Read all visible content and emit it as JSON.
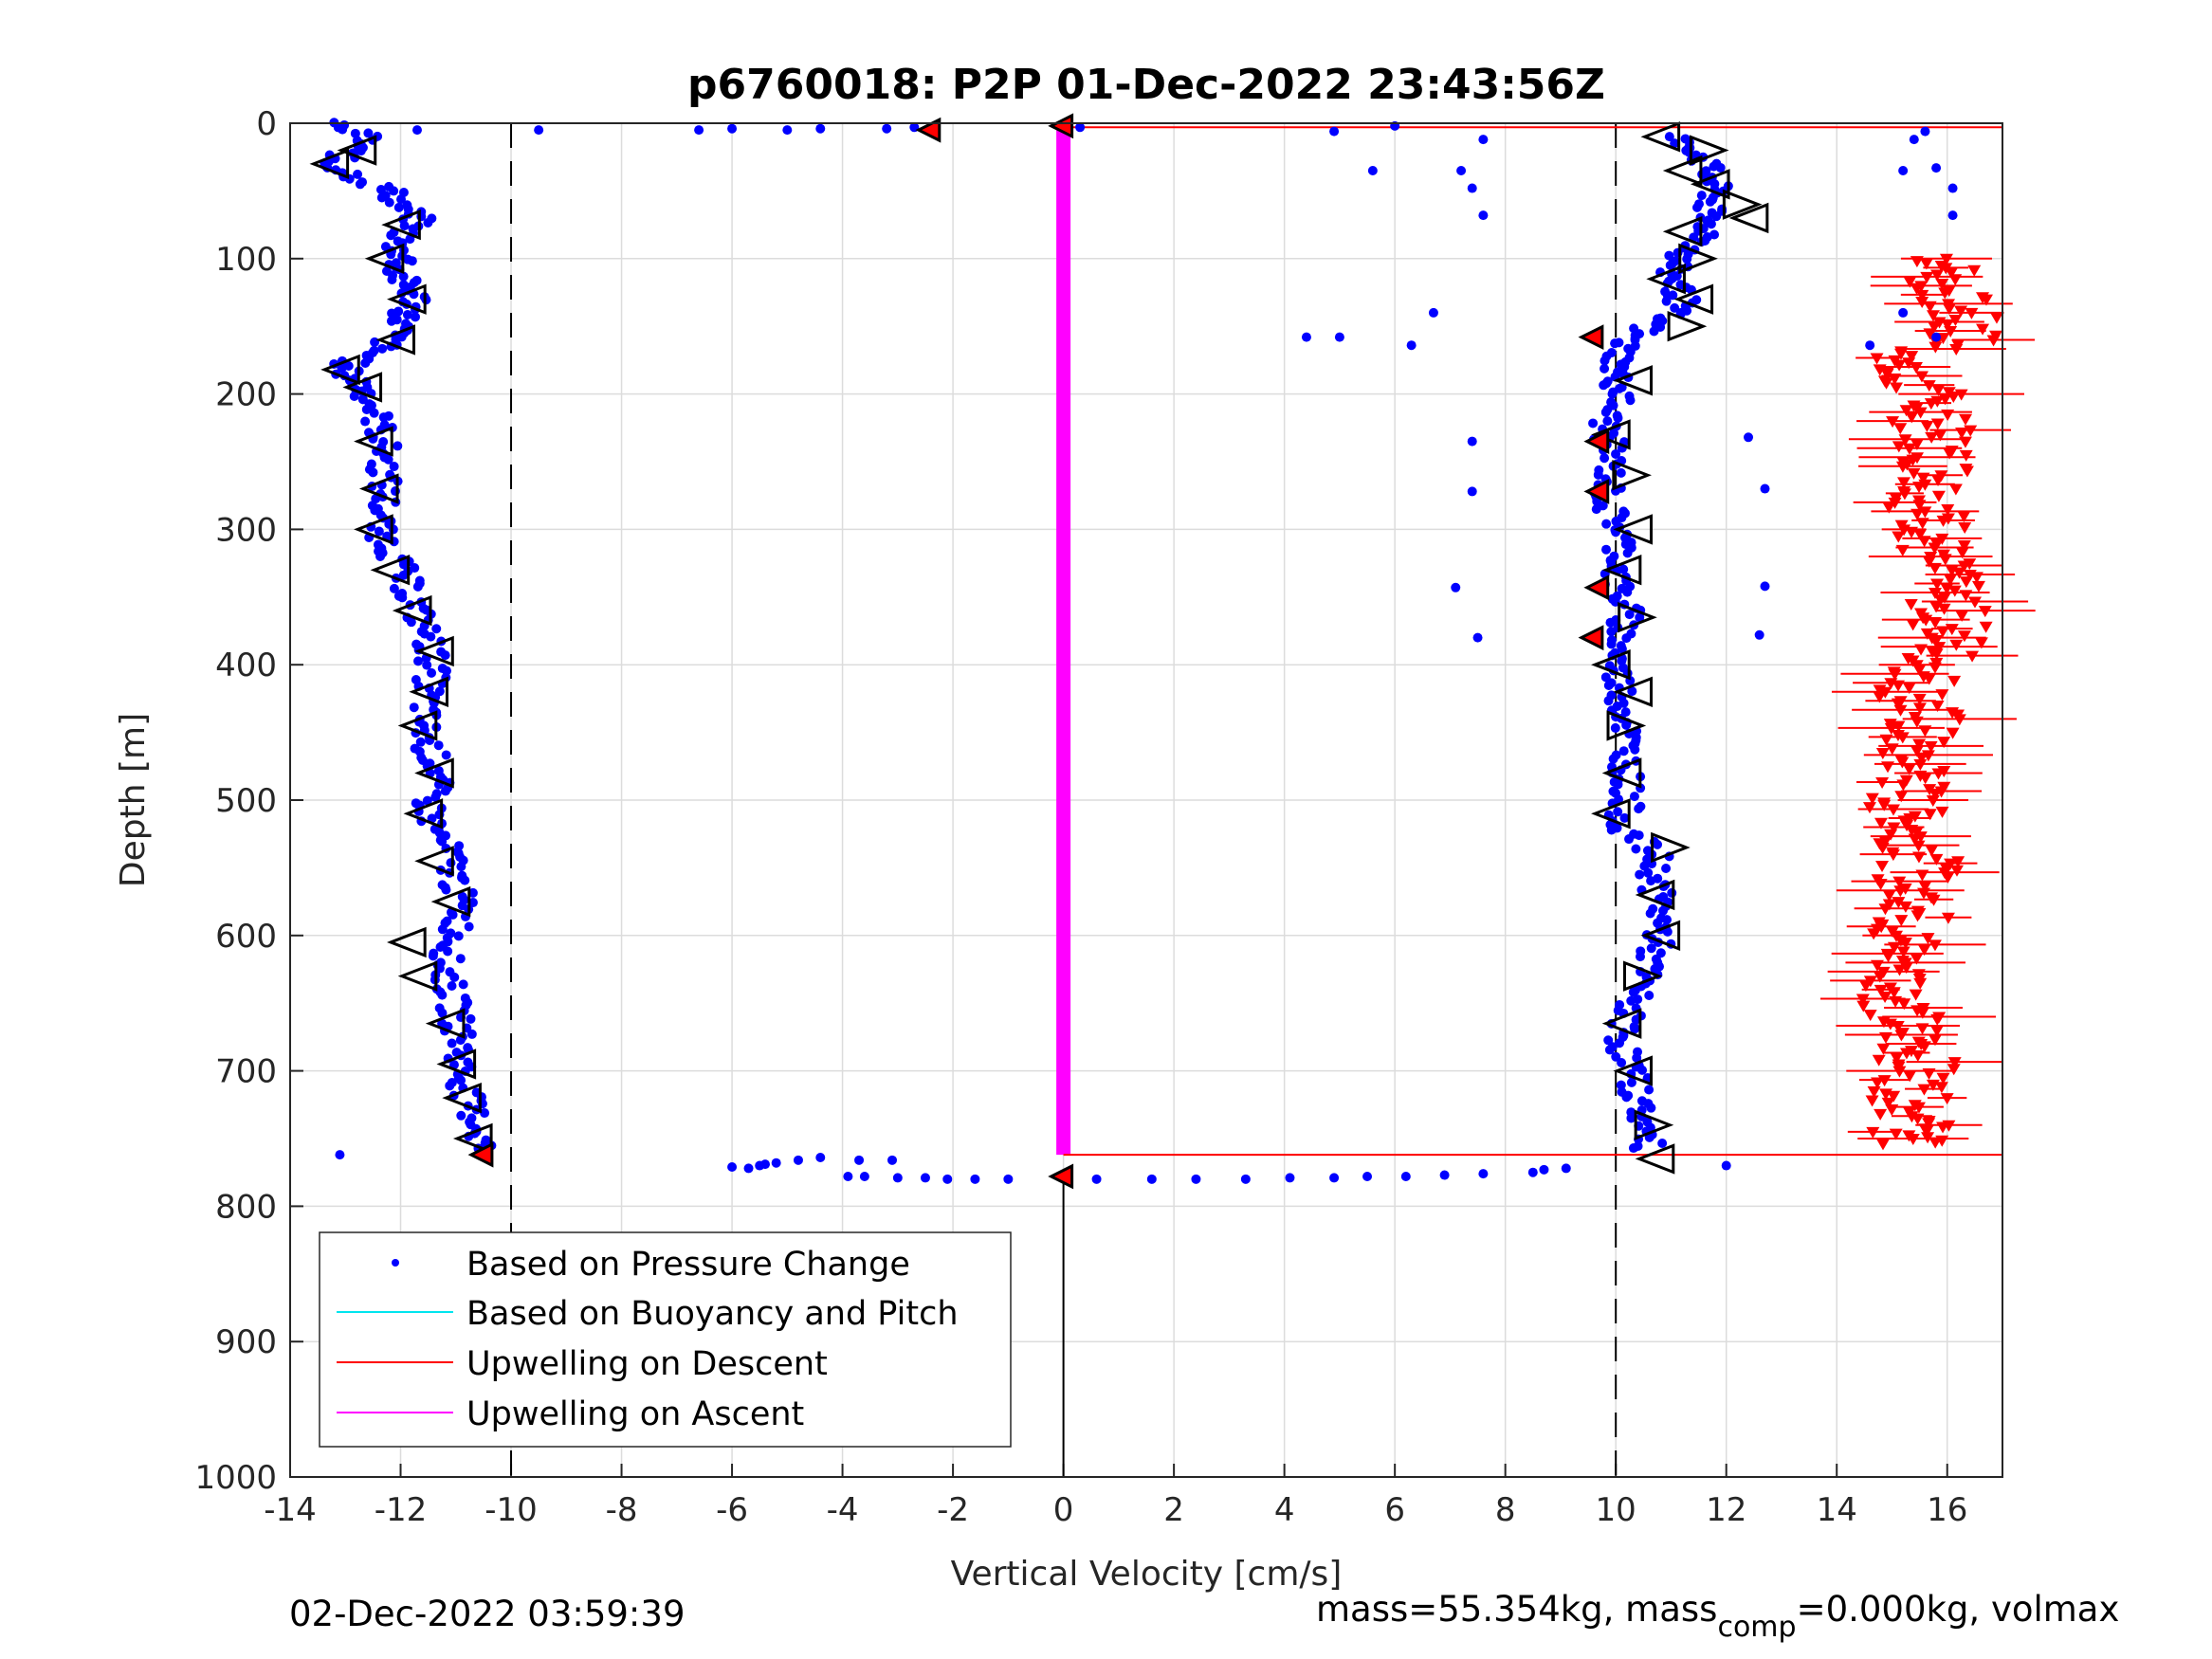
{
  "chart_data": {
    "type": "scatter",
    "title": "p6760018: P2P 01-Dec-2022 23:43:56Z",
    "xlabel": "Vertical Velocity [cm/s]",
    "ylabel": "Depth [m]",
    "xlim": [
      -14,
      17
    ],
    "ylim": [
      0,
      1000
    ],
    "y_reversed": true,
    "grid": true,
    "xticks": [
      "-14",
      "-12",
      "-10",
      "-8",
      "-6",
      "-4",
      "-2",
      "0",
      "2",
      "4",
      "6",
      "8",
      "10",
      "12",
      "14",
      "16"
    ],
    "yticks": [
      "0",
      "100",
      "200",
      "300",
      "400",
      "500",
      "600",
      "700",
      "800",
      "900",
      "1000"
    ],
    "reference_lines": [
      {
        "x": -10,
        "style": "dashed"
      },
      {
        "x": 10,
        "style": "dashed"
      },
      {
        "x": 0,
        "style": "solid",
        "y_from": 775,
        "y_to": 1000
      }
    ],
    "legend_position": "bottom-left",
    "legend": [
      {
        "label": "Based on Pressure Change",
        "color": "#0000ff",
        "marker": "dot"
      },
      {
        "label": "Based on Buoyancy and Pitch",
        "color": "#00e5ee",
        "marker": "line"
      },
      {
        "label": "Upwelling on Descent",
        "color": "#ff0000",
        "marker": "line"
      },
      {
        "label": "Upwelling on Ascent",
        "color": "#ff00ff",
        "marker": "line"
      }
    ],
    "series": [
      {
        "name": "Based on Pressure Change",
        "color": "#0000ff",
        "descent_profile": [
          [
            0,
            -13.3
          ],
          [
            10,
            -12.6
          ],
          [
            20,
            -12.9
          ],
          [
            30,
            -13.3
          ],
          [
            40,
            -12.8
          ],
          [
            50,
            -12.2
          ],
          [
            60,
            -12.0
          ],
          [
            70,
            -11.7
          ],
          [
            80,
            -11.9
          ],
          [
            90,
            -12.1
          ],
          [
            100,
            -11.9
          ],
          [
            110,
            -12.1
          ],
          [
            120,
            -11.9
          ],
          [
            130,
            -11.7
          ],
          [
            140,
            -11.9
          ],
          [
            150,
            -12.0
          ],
          [
            160,
            -12.2
          ],
          [
            170,
            -12.5
          ],
          [
            180,
            -13.1
          ],
          [
            190,
            -12.8
          ],
          [
            200,
            -12.6
          ],
          [
            220,
            -12.4
          ],
          [
            240,
            -12.3
          ],
          [
            260,
            -12.3
          ],
          [
            280,
            -12.3
          ],
          [
            300,
            -12.4
          ],
          [
            320,
            -12.1
          ],
          [
            340,
            -11.9
          ],
          [
            360,
            -11.7
          ],
          [
            380,
            -11.5
          ],
          [
            400,
            -11.4
          ],
          [
            420,
            -11.5
          ],
          [
            440,
            -11.6
          ],
          [
            460,
            -11.5
          ],
          [
            480,
            -11.3
          ],
          [
            500,
            -11.5
          ],
          [
            520,
            -11.4
          ],
          [
            540,
            -11.1
          ],
          [
            560,
            -11.0
          ],
          [
            580,
            -10.9
          ],
          [
            600,
            -11.0
          ],
          [
            620,
            -11.2
          ],
          [
            640,
            -11.1
          ],
          [
            660,
            -11.0
          ],
          [
            680,
            -10.9
          ],
          [
            700,
            -10.9
          ],
          [
            720,
            -10.8
          ],
          [
            740,
            -10.6
          ],
          [
            760,
            -10.5
          ]
        ],
        "ascent_profile": [
          [
            10,
            11.0
          ],
          [
            20,
            11.5
          ],
          [
            30,
            11.6
          ],
          [
            40,
            11.7
          ],
          [
            50,
            11.8
          ],
          [
            60,
            11.7
          ],
          [
            70,
            11.6
          ],
          [
            80,
            11.7
          ],
          [
            90,
            11.5
          ],
          [
            100,
            11.1
          ],
          [
            110,
            11.0
          ],
          [
            120,
            11.1
          ],
          [
            130,
            11.2
          ],
          [
            140,
            11.0
          ],
          [
            150,
            10.6
          ],
          [
            160,
            10.2
          ],
          [
            170,
            10.1
          ],
          [
            180,
            10.0
          ],
          [
            190,
            10.0
          ],
          [
            200,
            10.1
          ],
          [
            220,
            9.8
          ],
          [
            240,
            9.9
          ],
          [
            260,
            9.9
          ],
          [
            280,
            9.8
          ],
          [
            300,
            10.1
          ],
          [
            320,
            10.1
          ],
          [
            340,
            10.0
          ],
          [
            360,
            10.2
          ],
          [
            380,
            10.1
          ],
          [
            400,
            10.0
          ],
          [
            420,
            10.1
          ],
          [
            440,
            10.2
          ],
          [
            460,
            10.2
          ],
          [
            480,
            10.2
          ],
          [
            500,
            10.2
          ],
          [
            520,
            10.1
          ],
          [
            540,
            10.7
          ],
          [
            560,
            10.7
          ],
          [
            580,
            10.8
          ],
          [
            600,
            10.8
          ],
          [
            620,
            10.6
          ],
          [
            640,
            10.4
          ],
          [
            660,
            10.2
          ],
          [
            680,
            10.1
          ],
          [
            700,
            10.3
          ],
          [
            720,
            10.4
          ],
          [
            740,
            10.5
          ],
          [
            760,
            10.6
          ]
        ],
        "outliers": [
          [
            5,
            -11.7
          ],
          [
            5,
            -9.5
          ],
          [
            5,
            -6.6
          ],
          [
            4,
            -6.0
          ],
          [
            5,
            -5.0
          ],
          [
            4,
            -4.4
          ],
          [
            4,
            -3.2
          ],
          [
            3,
            -2.7
          ],
          [
            3,
            0.3
          ],
          [
            2,
            6.0
          ],
          [
            6,
            4.9
          ],
          [
            12,
            7.6
          ],
          [
            35,
            5.6
          ],
          [
            35,
            7.2
          ],
          [
            48,
            7.4
          ],
          [
            68,
            7.6
          ],
          [
            140,
            6.7
          ],
          [
            158,
            4.4
          ],
          [
            158,
            5.0
          ],
          [
            164,
            6.3
          ],
          [
            235,
            7.4
          ],
          [
            272,
            7.4
          ],
          [
            343,
            7.1
          ],
          [
            380,
            7.5
          ],
          [
            6,
            15.6
          ],
          [
            12,
            15.4
          ],
          [
            35,
            15.2
          ],
          [
            33,
            15.8
          ],
          [
            48,
            16.1
          ],
          [
            68,
            16.1
          ],
          [
            140,
            15.2
          ],
          [
            158,
            15.8
          ],
          [
            164,
            14.6
          ],
          [
            232,
            12.4
          ],
          [
            270,
            12.7
          ],
          [
            342,
            12.7
          ],
          [
            378,
            12.6
          ],
          [
            762,
            -13.1
          ],
          [
            770,
            12.0
          ],
          [
            773,
            8.7
          ],
          [
            772,
            9.1
          ],
          [
            766,
            -3.1
          ],
          [
            766,
            -3.7
          ],
          [
            764,
            -4.4
          ],
          [
            766,
            -4.8
          ],
          [
            768,
            -5.2
          ],
          [
            770,
            -5.5
          ],
          [
            771,
            -6.0
          ],
          [
            772,
            -5.7
          ],
          [
            769,
            -5.4
          ],
          [
            778,
            -3.9
          ],
          [
            778,
            -3.6
          ],
          [
            779,
            -3.0
          ],
          [
            779,
            -2.5
          ],
          [
            780,
            -2.1
          ],
          [
            780,
            -1.6
          ],
          [
            780,
            -1.0
          ],
          [
            780,
            0.6
          ],
          [
            780,
            1.6
          ],
          [
            780,
            2.4
          ],
          [
            780,
            3.3
          ],
          [
            779,
            4.1
          ],
          [
            779,
            4.9
          ],
          [
            778,
            5.5
          ],
          [
            778,
            6.2
          ],
          [
            777,
            6.9
          ],
          [
            776,
            7.6
          ],
          [
            775,
            8.5
          ]
        ]
      },
      {
        "name": "Upwelling on Descent",
        "color": "#ff0000",
        "line": [
          [
            3,
            0
          ],
          [
            3,
            17
          ],
          [
            762,
            0
          ],
          [
            762,
            17
          ]
        ],
        "triangles_down": [
          [
            100,
            16.0
          ],
          [
            120,
            15.9
          ],
          [
            140,
            16.2
          ],
          [
            160,
            16.3
          ],
          [
            180,
            14.8
          ],
          [
            200,
            15.6
          ],
          [
            220,
            15.7
          ],
          [
            240,
            15.8
          ],
          [
            260,
            15.9
          ],
          [
            280,
            15.6
          ],
          [
            300,
            15.8
          ],
          [
            320,
            15.7
          ],
          [
            340,
            15.9
          ],
          [
            360,
            16.0
          ],
          [
            380,
            16.1
          ],
          [
            400,
            15.8
          ],
          [
            420,
            15.4
          ],
          [
            440,
            15.6
          ],
          [
            460,
            15.3
          ],
          [
            480,
            15.5
          ],
          [
            500,
            15.2
          ],
          [
            520,
            15.3
          ],
          [
            540,
            15.6
          ],
          [
            560,
            15.4
          ],
          [
            580,
            15.5
          ],
          [
            600,
            15.2
          ],
          [
            620,
            15.3
          ],
          [
            640,
            15.1
          ],
          [
            660,
            15.2
          ],
          [
            680,
            15.4
          ],
          [
            700,
            15.5
          ],
          [
            720,
            15.3
          ],
          [
            740,
            15.4
          ],
          [
            755,
            15.2
          ]
        ]
      },
      {
        "name": "Upwelling on Ascent",
        "color": "#ff00ff",
        "line": [
          [
            3,
            0
          ],
          [
            762,
            0
          ]
        ]
      }
    ],
    "markers": {
      "descent_triangles_left": [
        [
          30,
          -13.2
        ],
        [
          20,
          -12.7
        ],
        [
          75,
          -11.9
        ],
        [
          100,
          -12.2
        ],
        [
          130,
          -11.8
        ],
        [
          160,
          -12.0
        ],
        [
          182,
          -13.0
        ],
        [
          195,
          -12.6
        ],
        [
          235,
          -12.4
        ],
        [
          270,
          -12.3
        ],
        [
          300,
          -12.4
        ],
        [
          330,
          -12.1
        ],
        [
          360,
          -11.7
        ],
        [
          390,
          -11.3
        ],
        [
          420,
          -11.4
        ],
        [
          445,
          -11.6
        ],
        [
          480,
          -11.3
        ],
        [
          510,
          -11.5
        ],
        [
          545,
          -11.3
        ],
        [
          575,
          -11.0
        ],
        [
          605,
          -11.8
        ],
        [
          630,
          -11.6
        ],
        [
          665,
          -11.1
        ],
        [
          695,
          -10.9
        ],
        [
          720,
          -10.8
        ],
        [
          750,
          -10.6
        ]
      ],
      "ascent_triangles": [
        [
          10,
          10.9
        ],
        [
          20,
          11.6
        ],
        [
          35,
          11.3
        ],
        [
          45,
          11.8
        ],
        [
          60,
          12.2
        ],
        [
          70,
          12.5
        ],
        [
          80,
          11.3
        ],
        [
          100,
          11.4
        ],
        [
          115,
          11.0
        ],
        [
          130,
          11.5
        ],
        [
          150,
          11.2
        ],
        [
          190,
          10.4
        ],
        [
          230,
          10.0
        ],
        [
          260,
          10.2
        ],
        [
          300,
          10.4
        ],
        [
          330,
          10.2
        ],
        [
          365,
          10.3
        ],
        [
          400,
          10.0
        ],
        [
          420,
          10.4
        ],
        [
          445,
          10.1
        ],
        [
          480,
          10.2
        ],
        [
          510,
          10.0
        ],
        [
          535,
          10.9
        ],
        [
          570,
          10.8
        ],
        [
          600,
          10.9
        ],
        [
          630,
          10.4
        ],
        [
          665,
          10.2
        ],
        [
          700,
          10.4
        ],
        [
          740,
          10.6
        ],
        [
          765,
          10.8
        ]
      ],
      "red_filled_triangles": [
        [
          5,
          -2.4
        ],
        [
          2,
          0.0
        ],
        [
          158,
          9.6
        ],
        [
          235,
          9.7
        ],
        [
          272,
          9.7
        ],
        [
          343,
          9.7
        ],
        [
          380,
          9.6
        ],
        [
          762,
          -10.5
        ],
        [
          778,
          0.0
        ]
      ]
    }
  },
  "footer": {
    "timestamp": "02-Dec-2022 03:59:39",
    "mass_text": "mass=55.354kg, mass",
    "mass_sub": "comp",
    "mass_rest": "=0.000kg, volmax"
  }
}
